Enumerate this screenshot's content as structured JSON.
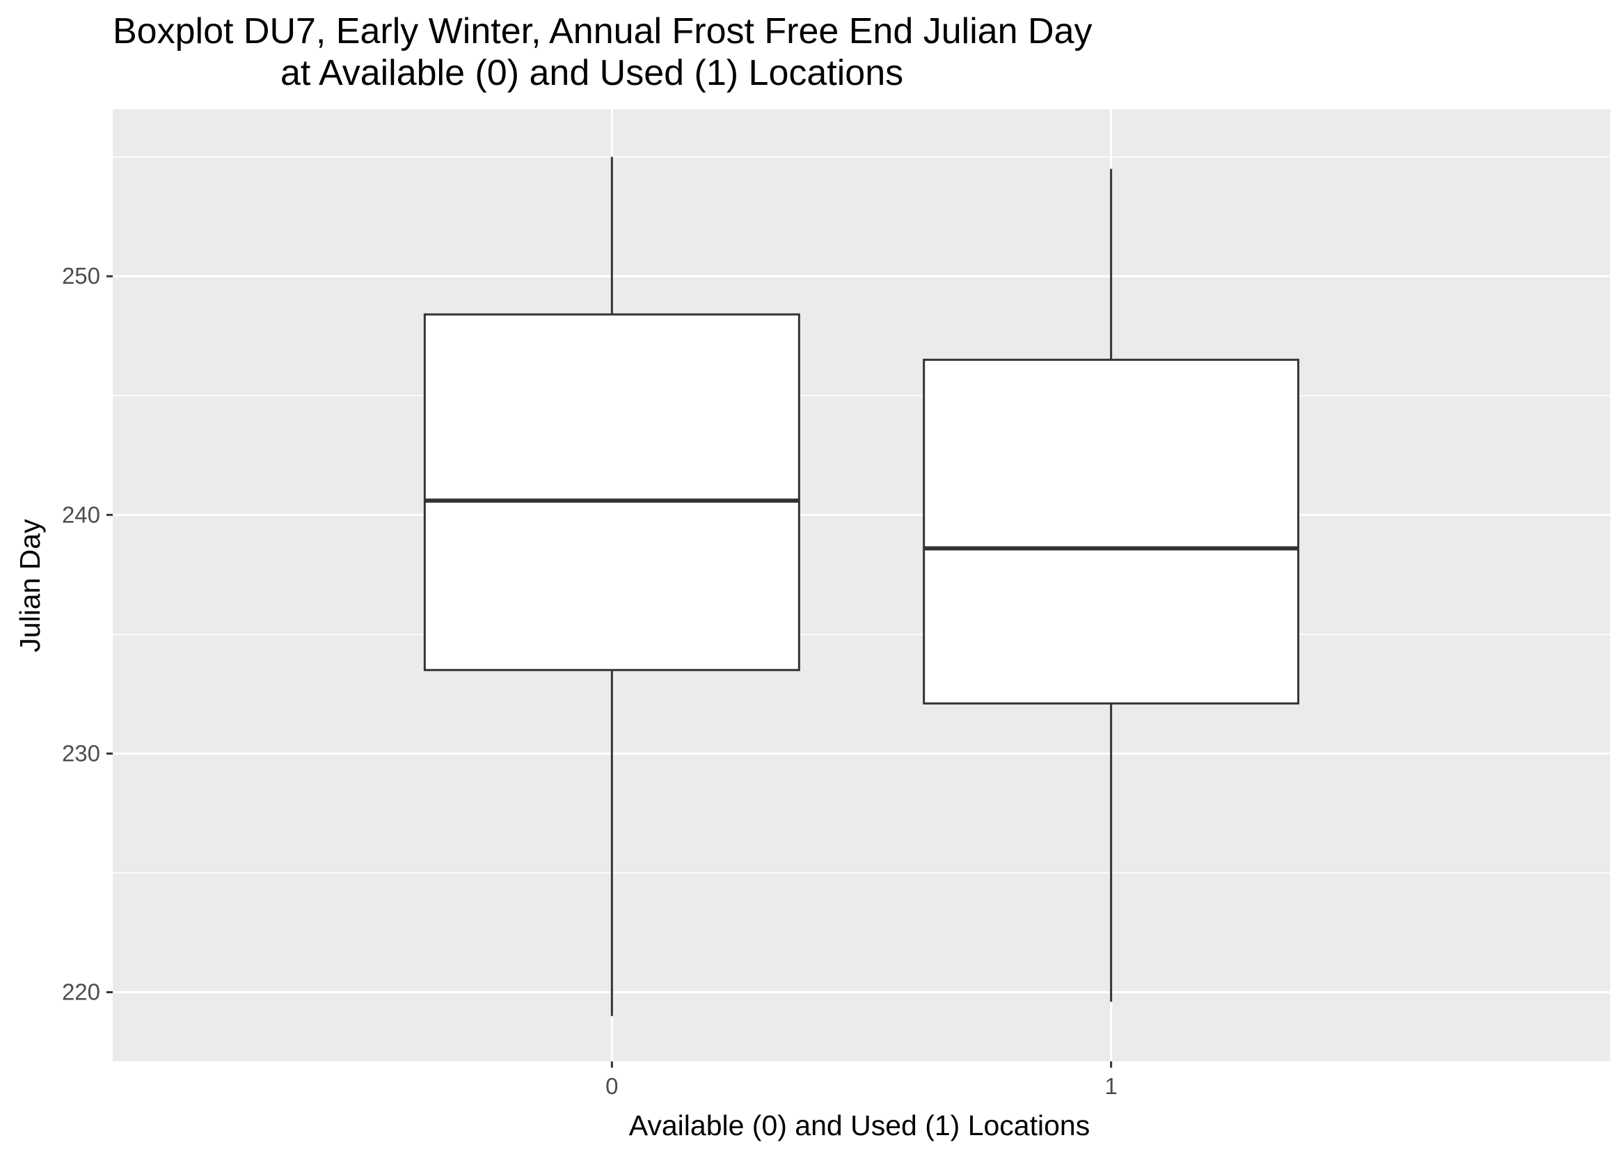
{
  "chart_data": {
    "type": "boxplot",
    "title": "Boxplot DU7, Early Winter, Annual Frost Free End Julian Day",
    "subtitle": "at Available (0) and Used (1) Locations",
    "xlabel": "Available (0) and Used (1) Locations",
    "ylabel": "Julian Day",
    "categories": [
      "0",
      "1"
    ],
    "boxes": [
      {
        "category": "0",
        "min": 219,
        "q1": 233.5,
        "median": 240.6,
        "q3": 248.4,
        "max": 255
      },
      {
        "category": "1",
        "min": 219.6,
        "q1": 232.1,
        "median": 238.6,
        "q3": 246.5,
        "max": 254.5
      }
    ],
    "ylim": [
      217.1,
      257.0
    ],
    "yticks": [
      220,
      230,
      240,
      250
    ],
    "ytick_labels": [
      "220",
      "230",
      "240",
      "250"
    ],
    "grid": true,
    "colors": {
      "panel_background": "#ebebeb",
      "grid": "#ffffff",
      "box_fill": "#ffffff",
      "box_outline": "#333333",
      "tick_text": "#4d4d4d"
    }
  }
}
